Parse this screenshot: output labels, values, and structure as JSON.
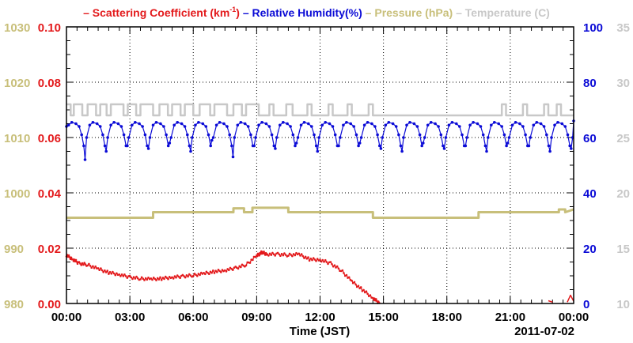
{
  "chart_data": {
    "type": "line",
    "xlabel": "Time (JST)",
    "date_label": "2011-07-02",
    "x_ticks": [
      "00:00",
      "03:00",
      "06:00",
      "09:00",
      "12:00",
      "15:00",
      "18:00",
      "21:00",
      "00:00"
    ],
    "xlim_hours": [
      0,
      24
    ],
    "grid": true,
    "legend_position": "top",
    "axes": {
      "pressure": {
        "side": "outer-left",
        "ticks": [
          "980",
          "990",
          "1000",
          "1010",
          "1020",
          "1030"
        ],
        "ylim": [
          980,
          1030
        ],
        "color": "#c8bf7a"
      },
      "scattering": {
        "side": "left",
        "ticks": [
          "0.00",
          "0.02",
          "0.04",
          "0.06",
          "0.08",
          "0.10"
        ],
        "ylim": [
          0,
          0.1
        ],
        "color": "#e31a1c"
      },
      "humidity": {
        "side": "right",
        "ticks": [
          "0",
          "20",
          "40",
          "60",
          "80",
          "100"
        ],
        "ylim": [
          0,
          100
        ],
        "color": "#0b0bd6"
      },
      "temperature": {
        "side": "outer-right",
        "ticks": [
          "10",
          "15",
          "20",
          "25",
          "30",
          "35"
        ],
        "ylim": [
          10,
          35
        ],
        "color": "#c8c8c8"
      }
    },
    "legend": [
      {
        "label": "Scattering Coefficient (km",
        "sup": "-1",
        "suffix": ")",
        "color": "#e31a1c"
      },
      {
        "label": "Relative Humidity(%)",
        "color": "#0b0bd6"
      },
      {
        "label": "Pressure (hPa)",
        "color": "#c8bf7a"
      },
      {
        "label": "Temperature (C)",
        "color": "#c8c8c8"
      }
    ],
    "series": [
      {
        "name": "Scattering Coefficient (km-1)",
        "axis": "scattering",
        "color": "#e31a1c",
        "x": [
          0,
          0.3,
          0.6,
          1.0,
          1.5,
          2.0,
          2.5,
          3.0,
          3.5,
          4.0,
          4.5,
          5.0,
          5.5,
          6.0,
          6.5,
          7.0,
          7.5,
          8.0,
          8.5,
          9.0,
          9.25,
          9.5,
          10.0,
          10.5,
          11.0,
          11.5,
          12.0,
          12.5,
          13.0,
          13.5,
          14.0,
          14.5,
          14.8
        ],
        "values": [
          0.0175,
          0.016,
          0.0145,
          0.014,
          0.0125,
          0.0112,
          0.0105,
          0.0095,
          0.009,
          0.0088,
          0.009,
          0.0095,
          0.0098,
          0.0102,
          0.0108,
          0.0115,
          0.012,
          0.0128,
          0.014,
          0.0172,
          0.0185,
          0.0178,
          0.0178,
          0.0175,
          0.0178,
          0.016,
          0.0158,
          0.0145,
          0.012,
          0.008,
          0.005,
          0.002,
          0.0002
        ],
        "extra_segments": [
          {
            "x": [
              22.8,
              23.0
            ],
            "values": [
              0.001,
              0.0005
            ]
          },
          {
            "x": [
              23.7,
              23.85,
              24.0
            ],
            "values": [
              0.0005,
              0.003,
              0.0008
            ]
          }
        ]
      },
      {
        "name": "Relative Humidity(%)",
        "axis": "humidity",
        "color": "#0b0bd6",
        "pattern": "hourly_dips",
        "baseline": 64,
        "dip_min": [
          52,
          55,
          57,
          56,
          58,
          55,
          59,
          53,
          57,
          56,
          58,
          55,
          57,
          58,
          56,
          55,
          58,
          56,
          57,
          55,
          58,
          57,
          55,
          56
        ],
        "start_value": 64,
        "end_value": 66
      },
      {
        "name": "Pressure (hPa)",
        "axis": "pressure",
        "color": "#c8bf7a",
        "x": [
          0,
          4.1,
          4.1,
          7.9,
          7.9,
          8.4,
          8.4,
          8.8,
          8.8,
          10.5,
          10.5,
          14.5,
          14.5,
          19.5,
          19.5,
          23.3,
          23.3,
          23.6,
          23.6,
          24
        ],
        "values": [
          995.5,
          995.5,
          996.5,
          996.5,
          997.2,
          997.2,
          996.5,
          996.5,
          997.3,
          997.3,
          996.5,
          996.5,
          995.5,
          995.5,
          996.5,
          996.5,
          997.0,
          997.0,
          996.5,
          997.0
        ]
      },
      {
        "name": "Temperature (C)",
        "axis": "temperature",
        "color": "#c8c8c8",
        "x": [
          0,
          0.2,
          0.2,
          0.35,
          0.35,
          0.75,
          0.75,
          1.0,
          1.0,
          1.4,
          1.4,
          1.6,
          1.6,
          1.9,
          1.9,
          2.1,
          2.1,
          2.7,
          2.7,
          2.9,
          2.9,
          3.3,
          3.3,
          3.5,
          3.5,
          4.1,
          4.1,
          4.4,
          4.4,
          4.8,
          4.8,
          5.0,
          5.0,
          5.4,
          5.4,
          5.6,
          5.6,
          6.0,
          6.0,
          6.3,
          6.3,
          6.8,
          6.8,
          7.0,
          7.0,
          7.6,
          7.6,
          7.9,
          7.9,
          8.3,
          8.3,
          8.5,
          8.5,
          9.1,
          9.1,
          9.6,
          9.6,
          9.8,
          9.8,
          10.4,
          10.4,
          10.7,
          10.7,
          11.4,
          11.4,
          11.6,
          11.6,
          12.4,
          12.4,
          12.6,
          12.6,
          13.3,
          13.3,
          13.5,
          13.5,
          14.3,
          14.3,
          14.5,
          14.5,
          20.6,
          20.6,
          20.8,
          20.8,
          21.6,
          21.6,
          21.8,
          21.8,
          22.6,
          22.6,
          22.8,
          22.8,
          23.2,
          23.2,
          23.4,
          23.4,
          24
        ],
        "values": [
          28,
          28,
          27,
          27,
          28,
          28,
          27,
          27,
          28,
          28,
          27,
          27,
          28,
          28,
          27,
          27,
          28,
          28,
          27,
          27,
          28,
          28,
          27,
          27,
          28,
          28,
          27,
          27,
          28,
          28,
          27,
          27,
          28,
          28,
          27,
          27,
          28,
          28,
          27,
          27,
          28,
          28,
          27,
          27,
          28,
          28,
          27,
          27,
          28,
          28,
          27,
          27,
          28,
          28,
          27,
          27,
          28,
          28,
          27,
          27,
          28,
          28,
          27,
          27,
          28,
          28,
          27,
          27,
          28,
          28,
          27,
          27,
          28,
          28,
          27,
          27,
          28,
          28,
          27,
          27,
          28,
          28,
          27,
          27,
          28,
          28,
          27,
          27,
          28,
          28,
          27,
          27,
          28,
          28,
          27,
          27
        ]
      }
    ]
  }
}
